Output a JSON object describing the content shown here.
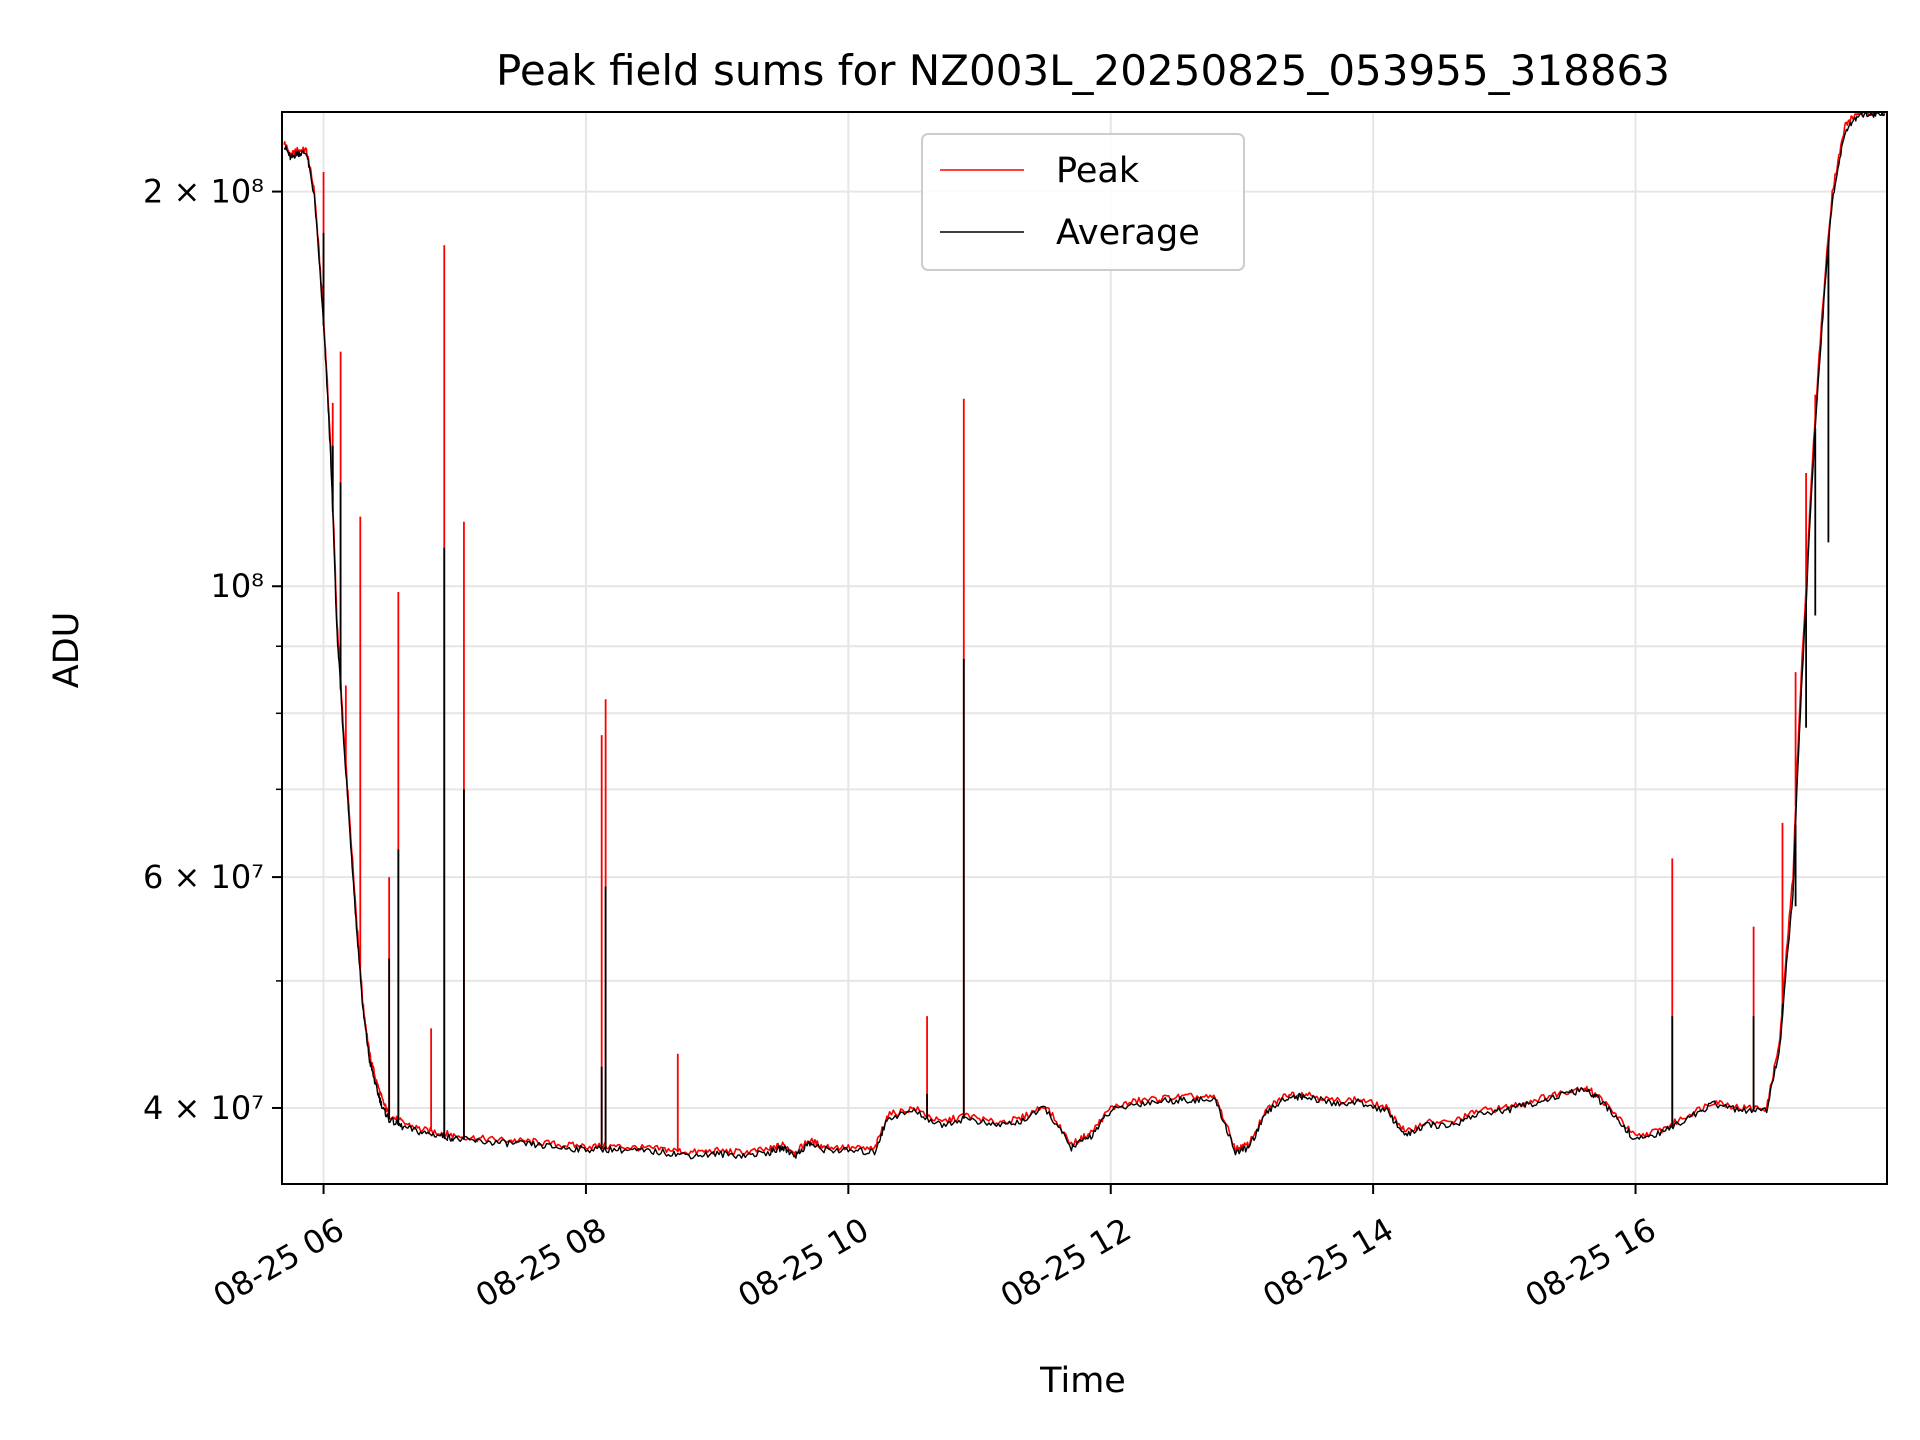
{
  "chart_data": {
    "type": "line",
    "title": "Peak field sums for NZ003L_20250825_053955_318863",
    "xlabel": "Time",
    "ylabel": "ADU",
    "yscale": "log",
    "xlim": [
      "2025-08-25 05:41",
      "2025-08-25 17:55"
    ],
    "ylim": [
      35000000,
      230000000
    ],
    "x_ticks": [
      "08-25 06",
      "08-25 08",
      "08-25 10",
      "08-25 12",
      "08-25 14",
      "08-25 16"
    ],
    "x_tick_hours": [
      6,
      8,
      10,
      12,
      14,
      16
    ],
    "y_major_ticks": [
      {
        "value": 40000000,
        "label": "4 × 10⁷"
      },
      {
        "value": 60000000,
        "label": "6 × 10⁷"
      },
      {
        "value": 100000000,
        "label": "10⁸"
      },
      {
        "value": 200000000,
        "label": "2 × 10⁸"
      }
    ],
    "y_minor_ticks": [
      50000000,
      70000000,
      80000000,
      90000000
    ],
    "grid": true,
    "legend": "upper-center",
    "series": [
      {
        "name": "Peak",
        "color": "#ff0000",
        "x_hours": [
          5.7,
          5.75,
          5.8,
          5.87,
          5.93,
          6.0,
          6.05,
          6.1,
          6.15,
          6.2,
          6.25,
          6.3,
          6.35,
          6.4,
          6.45,
          6.5,
          6.6,
          6.75,
          6.9,
          7.0,
          7.2,
          7.4,
          7.6,
          7.8,
          8.0,
          8.2,
          8.4,
          8.6,
          8.8,
          9.0,
          9.2,
          9.4,
          9.5,
          9.6,
          9.7,
          9.8,
          10.0,
          10.2,
          10.3,
          10.5,
          10.7,
          10.9,
          11.1,
          11.3,
          11.5,
          11.7,
          11.85,
          12.0,
          12.2,
          12.4,
          12.6,
          12.8,
          12.95,
          13.05,
          13.2,
          13.35,
          13.5,
          13.7,
          13.9,
          14.1,
          14.25,
          14.4,
          14.6,
          14.8,
          15.0,
          15.2,
          15.4,
          15.6,
          15.7,
          15.85,
          16.0,
          16.2,
          16.4,
          16.6,
          16.8,
          17.0,
          17.1,
          17.2,
          17.3,
          17.4,
          17.5,
          17.6,
          17.7,
          17.8,
          17.9
        ],
        "values": [
          218000000,
          213000000,
          215000000,
          215000000,
          200000000,
          160000000,
          130000000,
          95000000,
          78000000,
          66000000,
          56000000,
          48000000,
          44000000,
          42000000,
          40500000,
          39500000,
          39000000,
          38500000,
          38300000,
          38100000,
          37900000,
          37800000,
          37700000,
          37500000,
          37400000,
          37400000,
          37300000,
          37200000,
          37000000,
          37100000,
          37000000,
          37200000,
          37500000,
          37000000,
          37800000,
          37400000,
          37300000,
          37200000,
          39500000,
          40000000,
          39000000,
          39500000,
          39000000,
          39200000,
          40200000,
          37500000,
          38300000,
          40000000,
          40500000,
          40700000,
          40800000,
          40700000,
          37200000,
          37500000,
          40000000,
          41000000,
          41000000,
          40500000,
          40600000,
          40000000,
          38300000,
          39000000,
          39000000,
          39800000,
          40000000,
          40500000,
          41000000,
          41500000,
          41000000,
          39500000,
          38000000,
          38500000,
          39500000,
          40500000,
          40000000,
          40000000,
          45000000,
          60000000,
          100000000,
          150000000,
          200000000,
          225000000,
          230000000,
          230000000,
          230000000
        ],
        "spikes": [
          {
            "x_hours": 6.0,
            "value": 207000000
          },
          {
            "x_hours": 6.07,
            "value": 138000000
          },
          {
            "x_hours": 6.13,
            "value": 151000000
          },
          {
            "x_hours": 6.17,
            "value": 84000000
          },
          {
            "x_hours": 6.28,
            "value": 113000000
          },
          {
            "x_hours": 6.5,
            "value": 60000000
          },
          {
            "x_hours": 6.57,
            "value": 99000000
          },
          {
            "x_hours": 6.82,
            "value": 46000000
          },
          {
            "x_hours": 6.92,
            "value": 182000000
          },
          {
            "x_hours": 7.07,
            "value": 112000000
          },
          {
            "x_hours": 8.12,
            "value": 77000000
          },
          {
            "x_hours": 8.15,
            "value": 82000000
          },
          {
            "x_hours": 8.7,
            "value": 44000000
          },
          {
            "x_hours": 10.6,
            "value": 47000000
          },
          {
            "x_hours": 10.88,
            "value": 139000000
          },
          {
            "x_hours": 16.28,
            "value": 62000000
          },
          {
            "x_hours": 16.9,
            "value": 55000000
          },
          {
            "x_hours": 17.12,
            "value": 66000000
          },
          {
            "x_hours": 17.22,
            "value": 86000000
          },
          {
            "x_hours": 17.3,
            "value": 122000000
          },
          {
            "x_hours": 17.37,
            "value": 140000000
          },
          {
            "x_hours": 17.47,
            "value": 161000000
          }
        ]
      },
      {
        "name": "Average",
        "color": "#000000",
        "x_hours": [
          5.7,
          5.75,
          5.8,
          5.87,
          5.93,
          6.0,
          6.05,
          6.1,
          6.15,
          6.2,
          6.25,
          6.3,
          6.35,
          6.4,
          6.45,
          6.5,
          6.6,
          6.75,
          6.9,
          7.0,
          7.2,
          7.4,
          7.6,
          7.8,
          8.0,
          8.2,
          8.4,
          8.6,
          8.8,
          9.0,
          9.2,
          9.4,
          9.5,
          9.6,
          9.7,
          9.8,
          10.0,
          10.2,
          10.3,
          10.5,
          10.7,
          10.9,
          11.1,
          11.3,
          11.5,
          11.7,
          11.85,
          12.0,
          12.2,
          12.4,
          12.6,
          12.8,
          12.95,
          13.05,
          13.2,
          13.35,
          13.5,
          13.7,
          13.9,
          14.1,
          14.25,
          14.4,
          14.6,
          14.8,
          15.0,
          15.2,
          15.4,
          15.6,
          15.7,
          15.85,
          16.0,
          16.2,
          16.4,
          16.6,
          16.8,
          17.0,
          17.1,
          17.2,
          17.3,
          17.4,
          17.5,
          17.6,
          17.7,
          17.8,
          17.9
        ],
        "values": [
          217000000,
          212000000,
          214000000,
          214000000,
          198000000,
          158000000,
          128000000,
          93000000,
          77000000,
          65000000,
          55000000,
          47500000,
          43500000,
          41500000,
          40000000,
          39200000,
          38700000,
          38300000,
          38100000,
          37900000,
          37700000,
          37600000,
          37500000,
          37300000,
          37200000,
          37200000,
          37100000,
          37000000,
          36800000,
          36900000,
          36800000,
          37000000,
          37300000,
          36800000,
          37600000,
          37200000,
          37100000,
          37000000,
          39300000,
          39800000,
          38800000,
          39300000,
          38800000,
          39000000,
          40000000,
          37300000,
          38100000,
          39800000,
          40300000,
          40500000,
          40600000,
          40500000,
          37000000,
          37300000,
          39800000,
          40800000,
          40800000,
          40300000,
          40400000,
          39800000,
          38100000,
          38800000,
          38800000,
          39600000,
          39800000,
          40300000,
          40800000,
          41300000,
          40800000,
          39300000,
          37800000,
          38300000,
          39300000,
          40300000,
          39800000,
          39800000,
          44500000,
          58000000,
          97000000,
          147000000,
          197000000,
          223000000,
          229000000,
          229000000,
          229000000
        ],
        "spikes": [
          {
            "x_hours": 6.0,
            "value": 186000000
          },
          {
            "x_hours": 6.07,
            "value": 128000000
          },
          {
            "x_hours": 6.13,
            "value": 120000000
          },
          {
            "x_hours": 6.5,
            "value": 52000000
          },
          {
            "x_hours": 6.57,
            "value": 63000000
          },
          {
            "x_hours": 6.92,
            "value": 107000000
          },
          {
            "x_hours": 7.07,
            "value": 70000000
          },
          {
            "x_hours": 8.12,
            "value": 43000000
          },
          {
            "x_hours": 8.15,
            "value": 59000000
          },
          {
            "x_hours": 10.6,
            "value": 41000000
          },
          {
            "x_hours": 10.88,
            "value": 88000000
          },
          {
            "x_hours": 16.28,
            "value": 47000000
          },
          {
            "x_hours": 16.9,
            "value": 47000000
          },
          {
            "x_hours": 17.12,
            "value": 48000000
          },
          {
            "x_hours": 17.22,
            "value": 57000000
          },
          {
            "x_hours": 17.3,
            "value": 78000000
          },
          {
            "x_hours": 17.37,
            "value": 95000000
          },
          {
            "x_hours": 17.47,
            "value": 108000000
          }
        ]
      }
    ]
  }
}
